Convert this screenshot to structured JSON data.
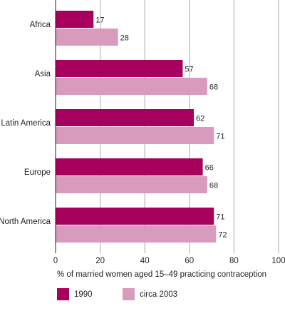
{
  "chart_data": {
    "type": "bar",
    "orientation": "horizontal",
    "categories": [
      "Africa",
      "Asia",
      "Latin America",
      "Europe",
      "North America"
    ],
    "series": [
      {
        "name": "1990",
        "values": [
          17,
          57,
          62,
          66,
          71
        ],
        "color": "#a8005d"
      },
      {
        "name": "circa 2003",
        "values": [
          28,
          68,
          71,
          68,
          72
        ],
        "color": "#d99bbd"
      }
    ],
    "xlabel": "% of married women aged 15–49 practicing contraception",
    "xlim": [
      0,
      100
    ],
    "xticks": [
      0,
      20,
      40,
      60,
      80,
      100
    ],
    "grid": true,
    "legend_position": "bottom",
    "data_labels": true
  }
}
